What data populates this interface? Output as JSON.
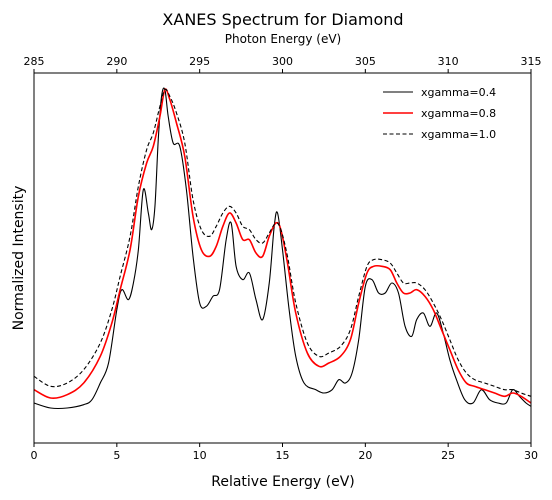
{
  "chart_data": {
    "type": "line",
    "title": "XANES Spectrum for Diamond",
    "xlabel": "Relative Energy (eV)",
    "ylabel": "Normalized Intensity",
    "x2label": "Photon Energy (eV)",
    "xlim": [
      0,
      30
    ],
    "ylim": [
      -0.06,
      1.05
    ],
    "x2lim": [
      285,
      315
    ],
    "xticks": [
      0,
      5,
      10,
      15,
      20,
      25,
      30
    ],
    "x2ticks": [
      285,
      290,
      295,
      300,
      305,
      310,
      315
    ],
    "yticks_visible": false,
    "grid": false,
    "legend_position": "top-right",
    "series": [
      {
        "name": "xgamma=0.4",
        "color": "#000000",
        "style": "solid",
        "x": [
          0,
          1,
          2,
          3,
          3.5,
          4,
          4.5,
          5,
          5.3,
          5.7,
          6,
          6.3,
          6.6,
          6.9,
          7.1,
          7.3,
          7.5,
          7.7,
          7.9,
          8.1,
          8.4,
          8.8,
          9.2,
          9.6,
          10,
          10.4,
          10.8,
          11.2,
          11.6,
          11.9,
          12.2,
          12.6,
          13,
          13.4,
          13.8,
          14.2,
          14.5,
          14.7,
          15,
          15.4,
          15.8,
          16.3,
          17,
          17.5,
          18,
          18.4,
          18.8,
          19.2,
          19.6,
          20,
          20.4,
          20.8,
          21.2,
          21.6,
          22,
          22.4,
          22.8,
          23.1,
          23.5,
          23.9,
          24.3,
          24.7,
          25.1,
          25.5,
          26,
          26.5,
          27,
          27.5,
          28,
          28.5,
          28.9,
          29.3,
          29.7,
          30
        ],
        "values": [
          0.06,
          0.045,
          0.045,
          0.055,
          0.07,
          0.12,
          0.18,
          0.34,
          0.4,
          0.37,
          0.42,
          0.52,
          0.7,
          0.63,
          0.58,
          0.65,
          0.85,
          0.98,
          1.0,
          0.92,
          0.84,
          0.83,
          0.7,
          0.5,
          0.36,
          0.35,
          0.38,
          0.4,
          0.55,
          0.6,
          0.47,
          0.43,
          0.45,
          0.37,
          0.31,
          0.42,
          0.59,
          0.63,
          0.52,
          0.34,
          0.2,
          0.12,
          0.1,
          0.09,
          0.1,
          0.13,
          0.12,
          0.15,
          0.25,
          0.41,
          0.43,
          0.39,
          0.39,
          0.42,
          0.39,
          0.29,
          0.26,
          0.31,
          0.33,
          0.29,
          0.33,
          0.27,
          0.19,
          0.13,
          0.07,
          0.06,
          0.1,
          0.07,
          0.06,
          0.06,
          0.1,
          0.08,
          0.06,
          0.05
        ]
      },
      {
        "name": "xgamma=0.8",
        "color": "#ff0000",
        "style": "solid",
        "x": [
          0,
          1,
          2,
          3,
          4,
          4.7,
          5.2,
          5.8,
          6.3,
          6.8,
          7.2,
          7.6,
          7.9,
          8.2,
          8.6,
          9.1,
          9.6,
          10.1,
          10.6,
          11,
          11.4,
          11.8,
          12.2,
          12.6,
          13,
          13.4,
          13.8,
          14.2,
          14.6,
          14.9,
          15.3,
          15.8,
          16.5,
          17.2,
          17.8,
          18.5,
          19.1,
          19.6,
          20.1,
          20.5,
          21,
          21.5,
          21.9,
          22.3,
          22.7,
          23.1,
          23.6,
          24.1,
          24.6,
          25.1,
          25.6,
          26.1,
          26.6,
          27.2,
          27.8,
          28.4,
          28.9,
          29.4,
          30
        ],
        "values": [
          0.1,
          0.075,
          0.085,
          0.12,
          0.2,
          0.3,
          0.4,
          0.52,
          0.68,
          0.78,
          0.83,
          0.92,
          1.0,
          0.97,
          0.9,
          0.8,
          0.62,
          0.52,
          0.5,
          0.53,
          0.59,
          0.63,
          0.6,
          0.55,
          0.55,
          0.51,
          0.5,
          0.56,
          0.6,
          0.58,
          0.48,
          0.33,
          0.21,
          0.17,
          0.18,
          0.2,
          0.25,
          0.36,
          0.45,
          0.47,
          0.47,
          0.46,
          0.42,
          0.39,
          0.39,
          0.4,
          0.38,
          0.34,
          0.28,
          0.22,
          0.16,
          0.12,
          0.11,
          0.1,
          0.09,
          0.08,
          0.09,
          0.08,
          0.06
        ]
      },
      {
        "name": "xgamma=1.0",
        "color": "#000000",
        "style": "dashed",
        "x": [
          0,
          1,
          2,
          3,
          4,
          4.7,
          5.2,
          5.8,
          6.3,
          6.8,
          7.2,
          7.6,
          7.9,
          8.2,
          8.6,
          9.1,
          9.6,
          10.1,
          10.6,
          11,
          11.4,
          11.8,
          12.2,
          12.6,
          13,
          13.4,
          13.8,
          14.2,
          14.6,
          14.9,
          15.3,
          15.8,
          16.5,
          17.2,
          17.8,
          18.5,
          19.1,
          19.6,
          20.1,
          20.5,
          21,
          21.5,
          21.9,
          22.3,
          22.7,
          23.1,
          23.6,
          24.1,
          24.6,
          25.1,
          25.6,
          26.1,
          26.6,
          27.2,
          27.8,
          28.4,
          28.9,
          29.4,
          30
        ],
        "values": [
          0.14,
          0.11,
          0.12,
          0.16,
          0.24,
          0.34,
          0.44,
          0.56,
          0.71,
          0.82,
          0.87,
          0.95,
          1.0,
          0.98,
          0.93,
          0.84,
          0.67,
          0.58,
          0.56,
          0.59,
          0.63,
          0.65,
          0.63,
          0.59,
          0.58,
          0.55,
          0.54,
          0.57,
          0.6,
          0.58,
          0.5,
          0.36,
          0.24,
          0.2,
          0.21,
          0.23,
          0.28,
          0.38,
          0.47,
          0.49,
          0.49,
          0.48,
          0.45,
          0.42,
          0.42,
          0.42,
          0.4,
          0.36,
          0.31,
          0.25,
          0.19,
          0.15,
          0.13,
          0.12,
          0.11,
          0.1,
          0.1,
          0.09,
          0.08
        ]
      }
    ]
  }
}
